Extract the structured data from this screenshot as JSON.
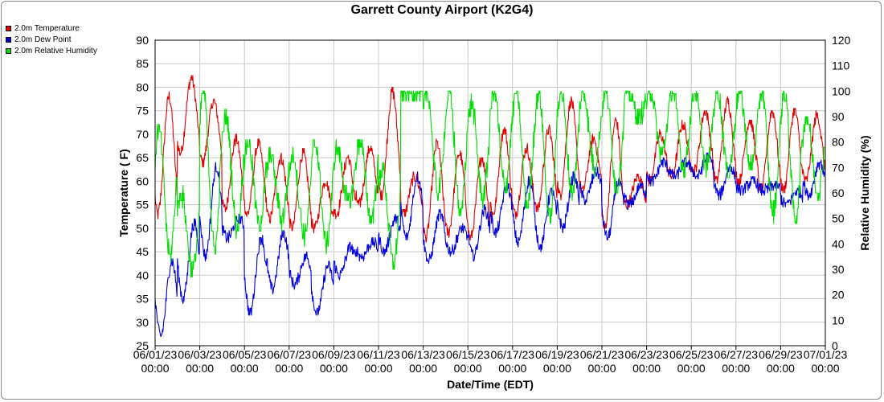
{
  "chart_data": {
    "type": "line",
    "title": "Garrett County Airport (K2G4)",
    "xlabel": "Date/Time (EDT)",
    "ylabel_left": "Temperature ( F)",
    "ylabel_right": "Relative Humidity (%)",
    "x_range": [
      "2023-06-01 00:00",
      "2023-07-01 00:00"
    ],
    "x_ticks": [
      {
        "date": "06/01/23",
        "time": "00:00"
      },
      {
        "date": "06/03/23",
        "time": "00:00"
      },
      {
        "date": "06/05/23",
        "time": "00:00"
      },
      {
        "date": "06/07/23",
        "time": "00:00"
      },
      {
        "date": "06/09/23",
        "time": "00:00"
      },
      {
        "date": "06/11/23",
        "time": "00:00"
      },
      {
        "date": "06/13/23",
        "time": "00:00"
      },
      {
        "date": "06/15/23",
        "time": "00:00"
      },
      {
        "date": "06/17/23",
        "time": "00:00"
      },
      {
        "date": "06/19/23",
        "time": "00:00"
      },
      {
        "date": "06/21/23",
        "time": "00:00"
      },
      {
        "date": "06/23/23",
        "time": "00:00"
      },
      {
        "date": "06/25/23",
        "time": "00:00"
      },
      {
        "date": "06/27/23",
        "time": "00:00"
      },
      {
        "date": "06/29/23",
        "time": "00:00"
      },
      {
        "date": "07/01/23",
        "time": "00:00"
      }
    ],
    "y_left": {
      "min": 25,
      "max": 90,
      "ticks": [
        25,
        30,
        35,
        40,
        45,
        50,
        55,
        60,
        65,
        70,
        75,
        80,
        85,
        90
      ]
    },
    "y_right": {
      "min": 0,
      "max": 120,
      "ticks": [
        0,
        10,
        20,
        30,
        40,
        50,
        60,
        70,
        80,
        90,
        100,
        110,
        120
      ]
    },
    "grid": true,
    "legend_position": "top-left",
    "days": [
      "06/01",
      "06/02",
      "06/03",
      "06/04",
      "06/05",
      "06/06",
      "06/07",
      "06/08",
      "06/09",
      "06/10",
      "06/11",
      "06/12",
      "06/13",
      "06/14",
      "06/15",
      "06/16",
      "06/17",
      "06/18",
      "06/19",
      "06/20",
      "06/21",
      "06/22",
      "06/23",
      "06/24",
      "06/25",
      "06/26",
      "06/27",
      "06/28",
      "06/29",
      "06/30"
    ],
    "series": [
      {
        "name": "2.0m Temperature",
        "color": "#e00000",
        "axis": "left",
        "daily_min": [
          53,
          66,
          64,
          54,
          53,
          52,
          50,
          50,
          53,
          55,
          57,
          53,
          48,
          49,
          48,
          53,
          53,
          54,
          57,
          58,
          50,
          55,
          60,
          61,
          62,
          60,
          60,
          58,
          58,
          60
        ],
        "daily_max": [
          78,
          82,
          77,
          69,
          68,
          65,
          66,
          60,
          65,
          67,
          79,
          61,
          68,
          66,
          65,
          71,
          67,
          71,
          77,
          69,
          73,
          61,
          70,
          72,
          75,
          77,
          73,
          75,
          75,
          74
        ]
      },
      {
        "name": "2.0m Dew Point",
        "color": "#0000e0",
        "axis": "left",
        "daily_min": [
          27,
          35,
          44,
          48,
          32,
          37,
          38,
          32,
          40,
          44,
          45,
          48,
          43,
          45,
          44,
          49,
          47,
          46,
          50,
          56,
          48,
          55,
          60,
          61,
          61,
          57,
          58,
          58,
          55,
          57
        ],
        "daily_max": [
          43,
          51,
          63,
          52,
          48,
          49,
          44,
          42,
          46,
          47,
          52,
          61,
          53,
          50,
          54,
          59,
          60,
          58,
          61,
          62,
          60,
          59,
          64,
          64,
          65,
          63,
          60,
          59,
          58,
          64
        ]
      },
      {
        "name": "2.0m Relative Humidity",
        "color": "#00dd00",
        "axis": "right",
        "daily_min": [
          35,
          30,
          38,
          46,
          47,
          50,
          44,
          40,
          56,
          50,
          32,
          100,
          60,
          52,
          58,
          62,
          55,
          50,
          60,
          70,
          62,
          90,
          75,
          70,
          70,
          68,
          70,
          52,
          50,
          60
        ],
        "daily_max": [
          85,
          60,
          100,
          90,
          80,
          75,
          75,
          80,
          77,
          80,
          70,
          100,
          100,
          100,
          95,
          100,
          100,
          100,
          100,
          100,
          100,
          100,
          100,
          100,
          100,
          100,
          100,
          100,
          100,
          90
        ]
      }
    ]
  }
}
